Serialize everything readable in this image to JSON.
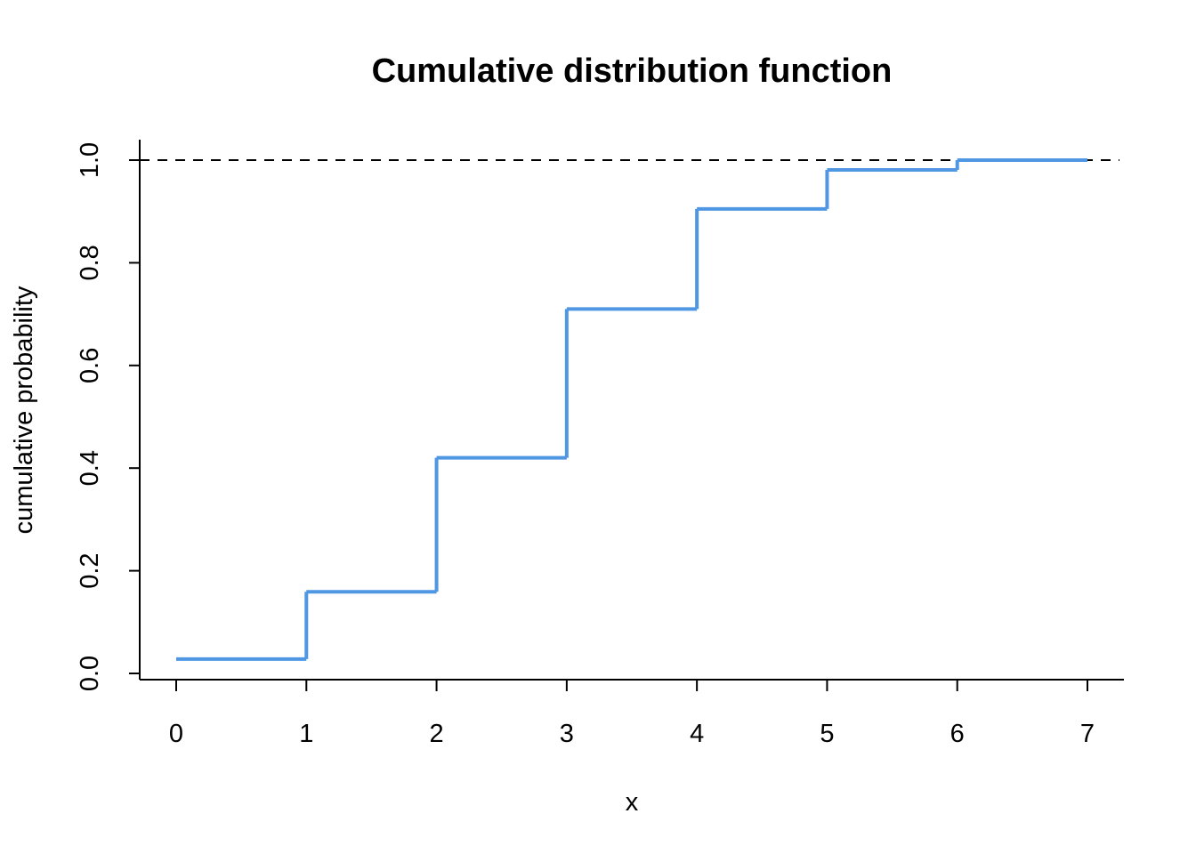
{
  "chart_data": {
    "type": "line",
    "title": "Cumulative distribution function",
    "xlabel": "x",
    "ylabel": "cumulative probability",
    "x": [
      0,
      1,
      2,
      3,
      4,
      5,
      6,
      7
    ],
    "series": [
      {
        "values": [
          0.028,
          0.159,
          0.42,
          0.71,
          0.905,
          0.981,
          1.0,
          1.0
        ],
        "color": "#4F97E3",
        "style": "step"
      }
    ],
    "reference_line": {
      "y": 1.0,
      "style": "dashed",
      "color": "#000000"
    },
    "xlim": [
      0,
      7
    ],
    "ylim": [
      0,
      1.0
    ],
    "x_ticks": [
      "0",
      "1",
      "2",
      "3",
      "4",
      "5",
      "6",
      "7"
    ],
    "y_ticks": [
      "0.0",
      "0.2",
      "0.4",
      "0.6",
      "0.8",
      "1.0"
    ],
    "grid": false,
    "legend": "none"
  }
}
